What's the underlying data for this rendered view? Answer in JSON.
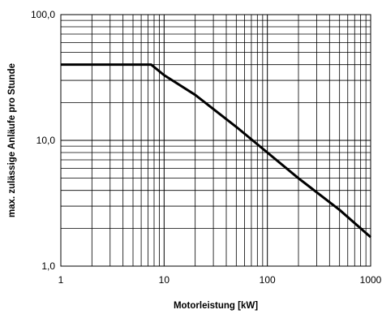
{
  "chart_data": {
    "type": "line",
    "title": "",
    "xlabel": "Motorleistung [kW]",
    "ylabel": "max. zulässige Anläufe pro Stunde",
    "xscale": "log",
    "yscale": "log",
    "xlim": [
      1,
      1000
    ],
    "ylim": [
      1,
      100
    ],
    "grid": true,
    "legend": "none",
    "x_tick_labels": [
      "1",
      "10",
      "100",
      "1000"
    ],
    "y_tick_labels": [
      "1,0",
      "10,0",
      "100,0"
    ],
    "series": [
      {
        "color": "#000000",
        "x": [
          1,
          7.5,
          10,
          20,
          50,
          100,
          200,
          500,
          1000
        ],
        "y": [
          40,
          40,
          33,
          23,
          12.8,
          8,
          5,
          2.8,
          1.7
        ]
      }
    ]
  }
}
